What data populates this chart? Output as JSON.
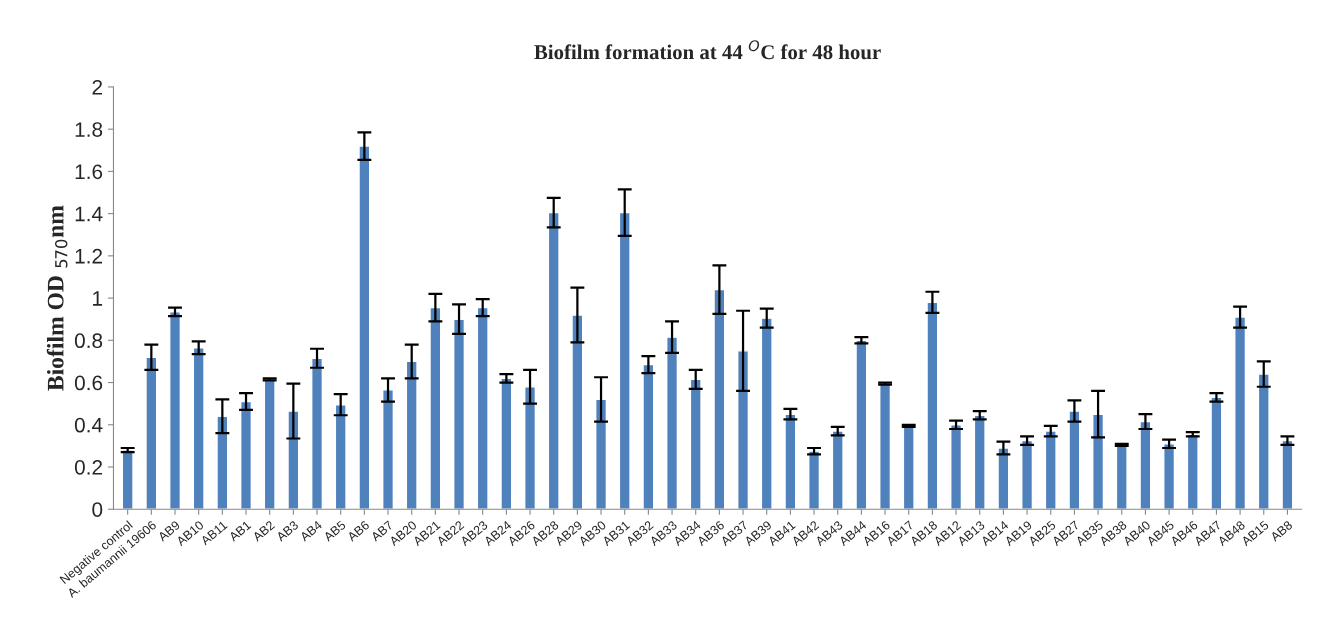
{
  "chart_data": {
    "type": "bar",
    "title": "Biofilm formation at 44 $^{O}$C for 48 hour",
    "ylabel": "Biofilm OD $_{570}$nm",
    "categories": [
      "Negative control",
      "A. baumannii 19606",
      "AB9",
      "AB10",
      "AB11",
      "AB1",
      "AB2",
      "AB3",
      "AB4",
      "AB5",
      "AB6",
      "AB7",
      "AB20",
      "AB21",
      "AB22",
      "AB23",
      "AB24",
      "AB26",
      "AB28",
      "AB29",
      "AB30",
      "AB31",
      "AB32",
      "AB33",
      "AB34",
      "AB36",
      "AB37",
      "AB39",
      "AB41",
      "AB42",
      "AB43",
      "AB44",
      "AB16",
      "AB17",
      "AB18",
      "AB12",
      "AB13",
      "AB14",
      "AB19",
      "AB25",
      "AB27",
      "AB35",
      "AB38",
      "AB40",
      "AB45",
      "AB46",
      "AB47",
      "AB48",
      "AB15",
      "AB8"
    ],
    "values": [
      0.28,
      0.72,
      0.935,
      0.765,
      0.44,
      0.51,
      0.615,
      0.465,
      0.715,
      0.495,
      1.72,
      0.565,
      0.7,
      0.955,
      0.9,
      0.955,
      0.62,
      0.58,
      1.405,
      0.92,
      0.52,
      1.405,
      0.685,
      0.815,
      0.615,
      1.04,
      0.75,
      0.905,
      0.45,
      0.275,
      0.37,
      0.8,
      0.595,
      0.395,
      0.98,
      0.4,
      0.445,
      0.29,
      0.325,
      0.37,
      0.465,
      0.45,
      0.305,
      0.415,
      0.31,
      0.355,
      0.53,
      0.91,
      0.64,
      0.325
    ],
    "errors": [
      0.01,
      0.06,
      0.02,
      0.03,
      0.08,
      0.04,
      0.005,
      0.13,
      0.045,
      0.05,
      0.065,
      0.055,
      0.08,
      0.065,
      0.07,
      0.04,
      0.02,
      0.08,
      0.07,
      0.13,
      0.105,
      0.11,
      0.04,
      0.075,
      0.045,
      0.115,
      0.19,
      0.045,
      0.025,
      0.015,
      0.02,
      0.015,
      0.005,
      0.005,
      0.05,
      0.02,
      0.02,
      0.03,
      0.02,
      0.025,
      0.05,
      0.11,
      0.005,
      0.035,
      0.02,
      0.01,
      0.02,
      0.05,
      0.06,
      0.02
    ],
    "color": "#4f81bd",
    "ylim": [
      0,
      2
    ],
    "yticks": [
      0,
      0.2,
      0.4,
      0.6,
      0.8,
      1,
      1.2,
      1.4,
      1.6,
      1.8,
      2
    ]
  }
}
